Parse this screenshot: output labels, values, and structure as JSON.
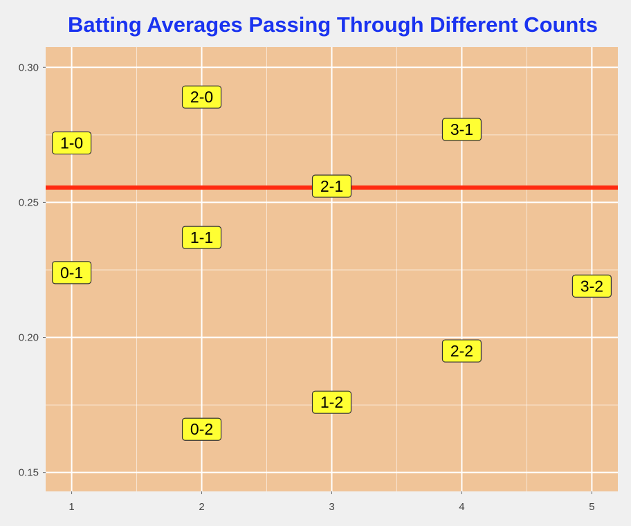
{
  "chart_data": {
    "type": "scatter",
    "title": "Batting Averages Passing Through Different Counts",
    "xlabel": "",
    "ylabel": "",
    "xlim": [
      0.8,
      5.2
    ],
    "ylim": [
      0.143,
      0.3075
    ],
    "x_ticks": [
      1,
      2,
      3,
      4,
      5
    ],
    "x_tick_labels": [
      "1",
      "2",
      "3",
      "4",
      "5"
    ],
    "y_ticks": [
      0.15,
      0.2,
      0.25,
      0.3
    ],
    "y_tick_labels": [
      "0.15",
      "0.20",
      "0.25",
      "0.30"
    ],
    "x_minor_gridlines": [
      1.5,
      2.5,
      3.5,
      4.5
    ],
    "y_minor_gridlines": [
      0.175,
      0.225,
      0.275
    ],
    "grid": true,
    "reference_line": {
      "y": 0.2555,
      "color": "#ff2a10"
    },
    "points": [
      {
        "x": 1,
        "y": 0.272,
        "label": "1-0"
      },
      {
        "x": 1,
        "y": 0.224,
        "label": "0-1"
      },
      {
        "x": 2,
        "y": 0.289,
        "label": "2-0"
      },
      {
        "x": 2,
        "y": 0.237,
        "label": "1-1"
      },
      {
        "x": 2,
        "y": 0.166,
        "label": "0-2"
      },
      {
        "x": 3,
        "y": 0.256,
        "label": "2-1"
      },
      {
        "x": 3,
        "y": 0.176,
        "label": "1-2"
      },
      {
        "x": 4,
        "y": 0.277,
        "label": "3-1"
      },
      {
        "x": 4,
        "y": 0.195,
        "label": "2-2"
      },
      {
        "x": 5,
        "y": 0.219,
        "label": "3-2"
      }
    ]
  },
  "colors": {
    "title": "#1a33f0",
    "panel_background": "#f0c498",
    "gridline": "#ffffff",
    "label_fill": "#ffff33",
    "label_border": "#333333",
    "page_background": "#f0f0f0"
  }
}
